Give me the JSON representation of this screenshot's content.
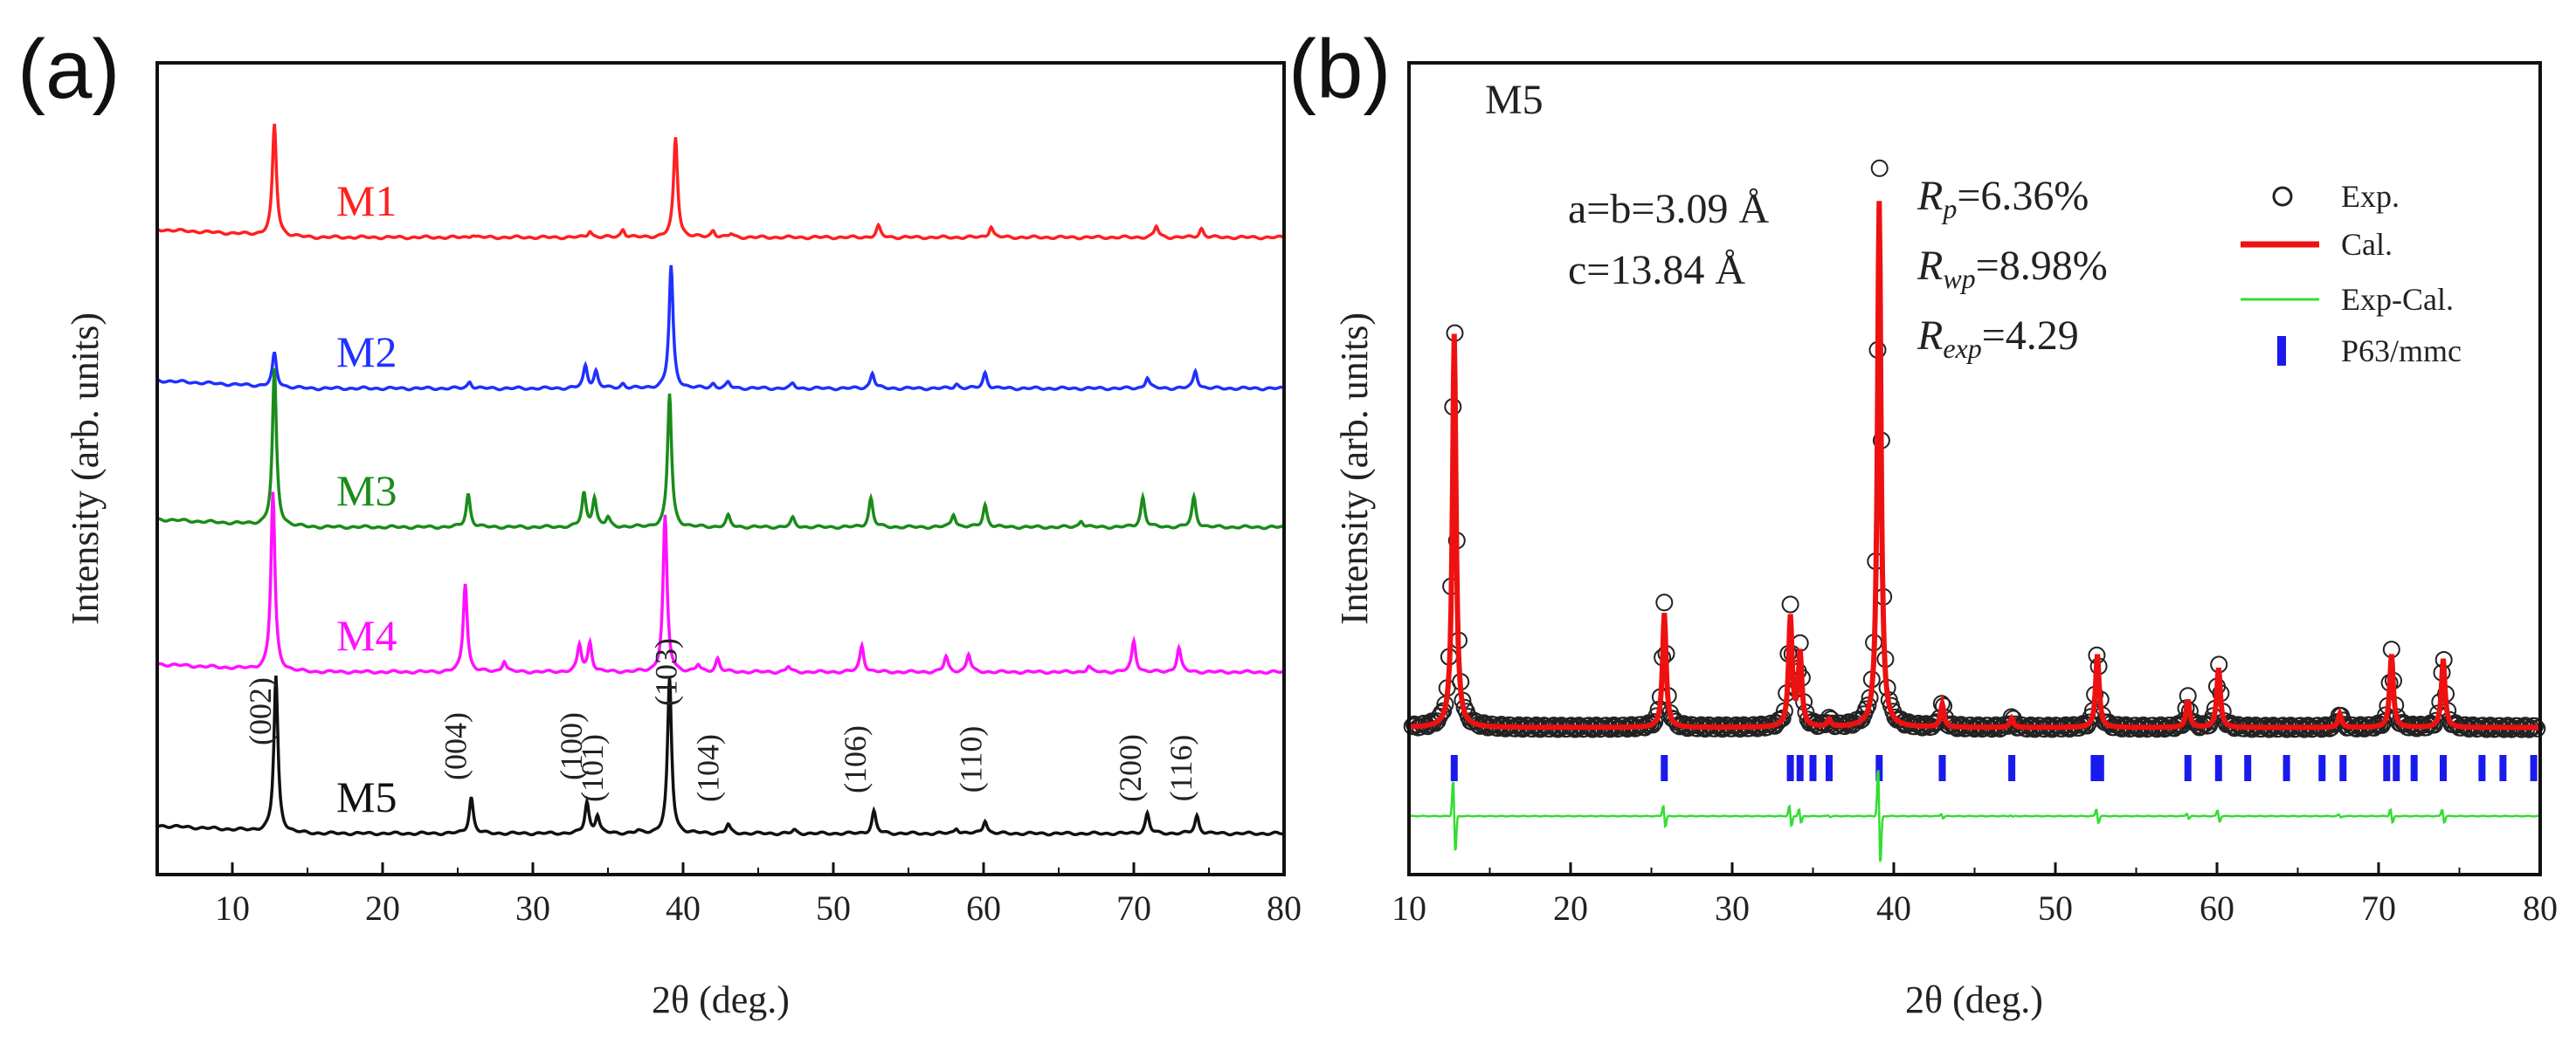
{
  "chart_data": [
    {
      "type": "line",
      "panel_label": "(a)",
      "xlabel": "2θ (deg.)",
      "ylabel": "Intensity (arb. units)",
      "xlim": [
        5,
        80
      ],
      "xticks": [
        10,
        20,
        30,
        40,
        50,
        60,
        70,
        80
      ],
      "series": [
        {
          "name": "M1",
          "color": "#ff2020",
          "offset": 4.0,
          "peak_scale": 0.85,
          "peaks": [
            [
              12.8,
              10.0
            ],
            [
              26.0,
              0.25
            ],
            [
              33.8,
              0.6
            ],
            [
              36.0,
              0.7
            ],
            [
              39.5,
              9.0
            ],
            [
              42.0,
              0.6
            ],
            [
              43.2,
              0.3
            ],
            [
              53.0,
              1.0
            ],
            [
              60.5,
              1.0
            ],
            [
              71.5,
              1.0
            ],
            [
              74.5,
              0.8
            ]
          ]
        },
        {
          "name": "M2",
          "color": "#2030ff",
          "offset": 3.0,
          "peak_scale": 0.85,
          "peaks": [
            [
              12.8,
              3.0
            ],
            [
              25.8,
              0.6
            ],
            [
              33.5,
              2.0
            ],
            [
              34.2,
              1.5
            ],
            [
              36.0,
              0.4
            ],
            [
              39.2,
              11.0
            ],
            [
              42.0,
              0.4
            ],
            [
              43.0,
              0.5
            ],
            [
              47.3,
              0.4
            ],
            [
              52.6,
              1.4
            ],
            [
              58.2,
              0.4
            ],
            [
              60.1,
              1.4
            ],
            [
              70.9,
              1.0
            ],
            [
              74.1,
              1.6
            ]
          ]
        },
        {
          "name": "M3",
          "color": "#1a8c1a",
          "offset": 2.0,
          "peak_scale": 0.85,
          "peaks": [
            [
              12.8,
              14.0
            ],
            [
              25.7,
              3.0
            ],
            [
              33.4,
              3.0
            ],
            [
              34.1,
              2.6
            ],
            [
              35.0,
              0.8
            ],
            [
              39.1,
              12.0
            ],
            [
              43.0,
              1.0
            ],
            [
              47.3,
              0.8
            ],
            [
              52.5,
              2.6
            ],
            [
              58.0,
              1.2
            ],
            [
              60.1,
              2.0
            ],
            [
              66.5,
              0.6
            ],
            [
              70.6,
              2.7
            ],
            [
              74.0,
              2.7
            ]
          ]
        },
        {
          "name": "M4",
          "color": "#ff10ff",
          "offset": 1.0,
          "peak_scale": 0.85,
          "peaks": [
            [
              12.7,
              16.0
            ],
            [
              25.5,
              8.0
            ],
            [
              28.1,
              1.0
            ],
            [
              33.1,
              2.4
            ],
            [
              33.8,
              2.6
            ],
            [
              38.8,
              14.0
            ],
            [
              41.0,
              0.6
            ],
            [
              42.3,
              1.2
            ],
            [
              47.0,
              0.5
            ],
            [
              51.9,
              2.4
            ],
            [
              57.5,
              1.4
            ],
            [
              59.0,
              1.6
            ],
            [
              67.0,
              0.5
            ],
            [
              70.0,
              2.8
            ],
            [
              73.0,
              2.2
            ]
          ]
        },
        {
          "name": "M5",
          "color": "#111111",
          "offset": 0.0,
          "peak_scale": 0.85,
          "peaks": [
            [
              12.9,
              14.0
            ],
            [
              25.9,
              3.3
            ],
            [
              33.6,
              2.8
            ],
            [
              34.3,
              1.6
            ],
            [
              37.0,
              0.2
            ],
            [
              39.1,
              14.0
            ],
            [
              43.0,
              0.8
            ],
            [
              47.4,
              0.3
            ],
            [
              52.7,
              2.0
            ],
            [
              58.2,
              0.5
            ],
            [
              60.1,
              1.2
            ],
            [
              70.9,
              1.8
            ],
            [
              74.2,
              1.6
            ]
          ]
        }
      ],
      "annotations": [
        {
          "text": "(002)",
          "x": 12.9
        },
        {
          "text": "(004)",
          "x": 25.9
        },
        {
          "text": "(100)",
          "x": 33.6
        },
        {
          "text": "(101)",
          "x": 35.0
        },
        {
          "text": "(103)",
          "x": 39.9
        },
        {
          "text": "(104)",
          "x": 42.7
        },
        {
          "text": "(106)",
          "x": 52.5
        },
        {
          "text": "(110)",
          "x": 60.2
        },
        {
          "text": "(200)",
          "x": 70.8
        },
        {
          "text": "(116)",
          "x": 74.2
        }
      ]
    },
    {
      "type": "scatter",
      "panel_label": "(b)",
      "title": "M5",
      "xlabel": "2θ (deg.)",
      "ylabel": "Intensity (arb. units)",
      "xlim": [
        10,
        80
      ],
      "xticks": [
        10,
        20,
        30,
        40,
        50,
        60,
        70,
        80
      ],
      "lattice": [
        "a=b=3.09 Å",
        "c=13.84 Å"
      ],
      "fit_stats": [
        {
          "sym": "R",
          "sub": "p",
          "value": "=6.36%"
        },
        {
          "sym": "R",
          "sub": "wp",
          "value": "=8.98%"
        },
        {
          "sym": "R",
          "sub": "exp",
          "value": "=4.29"
        }
      ],
      "legend": [
        "Exp.",
        "Cal.",
        "Exp-Cal.",
        "P63/mmc"
      ],
      "colors": {
        "exp": "#222222",
        "cal": "#ee1111",
        "diff": "#33dd33",
        "bragg": "#1a1aee"
      },
      "peaks": [
        [
          12.8,
          8.6
        ],
        [
          25.8,
          2.5
        ],
        [
          33.6,
          2.4
        ],
        [
          34.2,
          1.6
        ],
        [
          36.0,
          0.15
        ],
        [
          39.1,
          11.5
        ],
        [
          43.0,
          0.5
        ],
        [
          47.3,
          0.2
        ],
        [
          52.6,
          1.6
        ],
        [
          58.2,
          0.6
        ],
        [
          60.1,
          1.3
        ],
        [
          67.6,
          0.3
        ],
        [
          70.8,
          1.6
        ],
        [
          74.0,
          1.5
        ]
      ],
      "bragg_positions": [
        12.8,
        25.8,
        33.6,
        34.2,
        35.0,
        36.0,
        39.1,
        43.0,
        47.3,
        52.4,
        52.8,
        58.2,
        60.1,
        61.9,
        64.3,
        66.5,
        67.8,
        70.5,
        71.1,
        72.2,
        74.0,
        76.4,
        77.7,
        79.6
      ]
    }
  ]
}
